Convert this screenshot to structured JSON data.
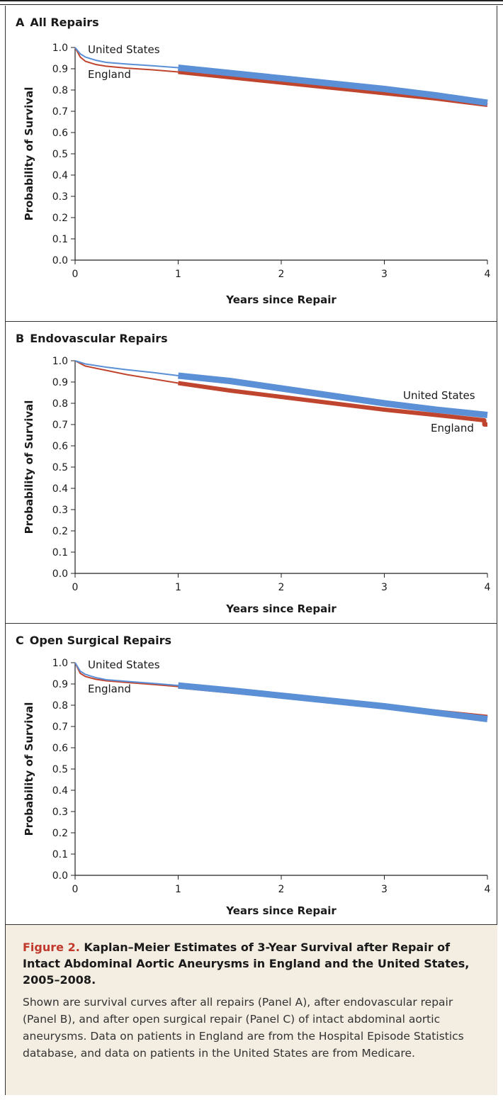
{
  "colors": {
    "us": "#5b8fd6",
    "england": "#c0452e",
    "caption_bg": "#f3ede2",
    "figure_label": "#c0392b"
  },
  "chart_data": [
    {
      "type": "line",
      "panel_letter": "A",
      "title": "All Repairs",
      "xlabel": "Years since Repair",
      "ylabel": "Probability of Survival",
      "xlim": [
        0,
        4
      ],
      "ylim": [
        0,
        1.0
      ],
      "x_ticks": [
        "0",
        "1",
        "2",
        "3",
        "4"
      ],
      "y_ticks": [
        "0.0",
        "0.1",
        "0.2",
        "0.3",
        "0.4",
        "0.5",
        "0.6",
        "0.7",
        "0.8",
        "0.9",
        "1.0"
      ],
      "series": [
        {
          "name": "United States",
          "color": "#5b8fd6",
          "x": [
            0,
            0.05,
            0.1,
            0.2,
            0.3,
            0.5,
            0.75,
            1.0,
            1.5,
            2.0,
            2.5,
            3.0,
            3.5,
            4.0
          ],
          "y": [
            1.0,
            0.97,
            0.955,
            0.94,
            0.93,
            0.922,
            0.914,
            0.905,
            0.88,
            0.855,
            0.83,
            0.805,
            0.775,
            0.74
          ]
        },
        {
          "name": "England",
          "color": "#c0452e",
          "x": [
            0,
            0.05,
            0.1,
            0.2,
            0.3,
            0.5,
            0.75,
            1.0,
            1.5,
            2.0,
            2.5,
            3.0,
            3.5,
            4.0
          ],
          "y": [
            1.0,
            0.955,
            0.935,
            0.92,
            0.912,
            0.903,
            0.895,
            0.885,
            0.86,
            0.835,
            0.81,
            0.785,
            0.76,
            0.73
          ]
        }
      ]
    },
    {
      "type": "line",
      "panel_letter": "B",
      "title": "Endovascular Repairs",
      "xlabel": "Years since Repair",
      "ylabel": "Probability of Survival",
      "xlim": [
        0,
        4
      ],
      "ylim": [
        0,
        1.0
      ],
      "x_ticks": [
        "0",
        "1",
        "2",
        "3",
        "4"
      ],
      "y_ticks": [
        "0.0",
        "0.1",
        "0.2",
        "0.3",
        "0.4",
        "0.5",
        "0.6",
        "0.7",
        "0.8",
        "0.9",
        "1.0"
      ],
      "series": [
        {
          "name": "United States",
          "color": "#5b8fd6",
          "x": [
            0,
            0.1,
            0.3,
            0.5,
            0.75,
            1.0,
            1.5,
            2.0,
            2.5,
            3.0,
            3.5,
            4.0
          ],
          "y": [
            1.0,
            0.985,
            0.97,
            0.958,
            0.945,
            0.93,
            0.905,
            0.87,
            0.835,
            0.8,
            0.77,
            0.745
          ]
        },
        {
          "name": "England",
          "color": "#c0452e",
          "x": [
            0,
            0.1,
            0.3,
            0.5,
            0.75,
            1.0,
            1.5,
            2.0,
            2.5,
            3.0,
            3.5,
            3.97,
            3.97,
            4.0
          ],
          "y": [
            1.0,
            0.975,
            0.955,
            0.935,
            0.915,
            0.895,
            0.86,
            0.83,
            0.8,
            0.77,
            0.745,
            0.72,
            0.7,
            0.7
          ]
        }
      ]
    },
    {
      "type": "line",
      "panel_letter": "C",
      "title": "Open Surgical Repairs",
      "xlabel": "Years since Repair",
      "ylabel": "Probability of Survival",
      "xlim": [
        0,
        4
      ],
      "ylim": [
        0,
        1.0
      ],
      "x_ticks": [
        "0",
        "1",
        "2",
        "3",
        "4"
      ],
      "y_ticks": [
        "0.0",
        "0.1",
        "0.2",
        "0.3",
        "0.4",
        "0.5",
        "0.6",
        "0.7",
        "0.8",
        "0.9",
        "1.0"
      ],
      "series": [
        {
          "name": "United States",
          "color": "#5b8fd6",
          "x": [
            0,
            0.05,
            0.1,
            0.2,
            0.3,
            0.5,
            0.75,
            1.0,
            1.5,
            2.0,
            2.5,
            3.0,
            3.5,
            4.0
          ],
          "y": [
            1.0,
            0.96,
            0.945,
            0.93,
            0.92,
            0.912,
            0.903,
            0.893,
            0.87,
            0.845,
            0.82,
            0.795,
            0.765,
            0.735
          ]
        },
        {
          "name": "England",
          "color": "#c0452e",
          "x": [
            0,
            0.05,
            0.1,
            0.2,
            0.3,
            0.5,
            0.75,
            1.0,
            1.5,
            2.0,
            2.5,
            3.0,
            3.5,
            4.0
          ],
          "y": [
            1.0,
            0.95,
            0.935,
            0.922,
            0.915,
            0.907,
            0.898,
            0.888,
            0.865,
            0.842,
            0.818,
            0.795,
            0.77,
            0.745
          ]
        }
      ]
    }
  ],
  "caption": {
    "figure_label": "Figure 2.",
    "title": "Kaplan–Meier Estimates of 3-Year Survival after Repair of Intact Abdominal Aortic Aneurysms in England and the United States, 2005–2008.",
    "body": "Shown are survival curves after all repairs (Panel A), after endovascular repair (Panel B), and after open surgical repair (Panel C) of intact abdominal aortic aneurysms. Data on patients in England are from the Hospital Episode Statistics database, and data on patients in the United States are from Medicare."
  }
}
